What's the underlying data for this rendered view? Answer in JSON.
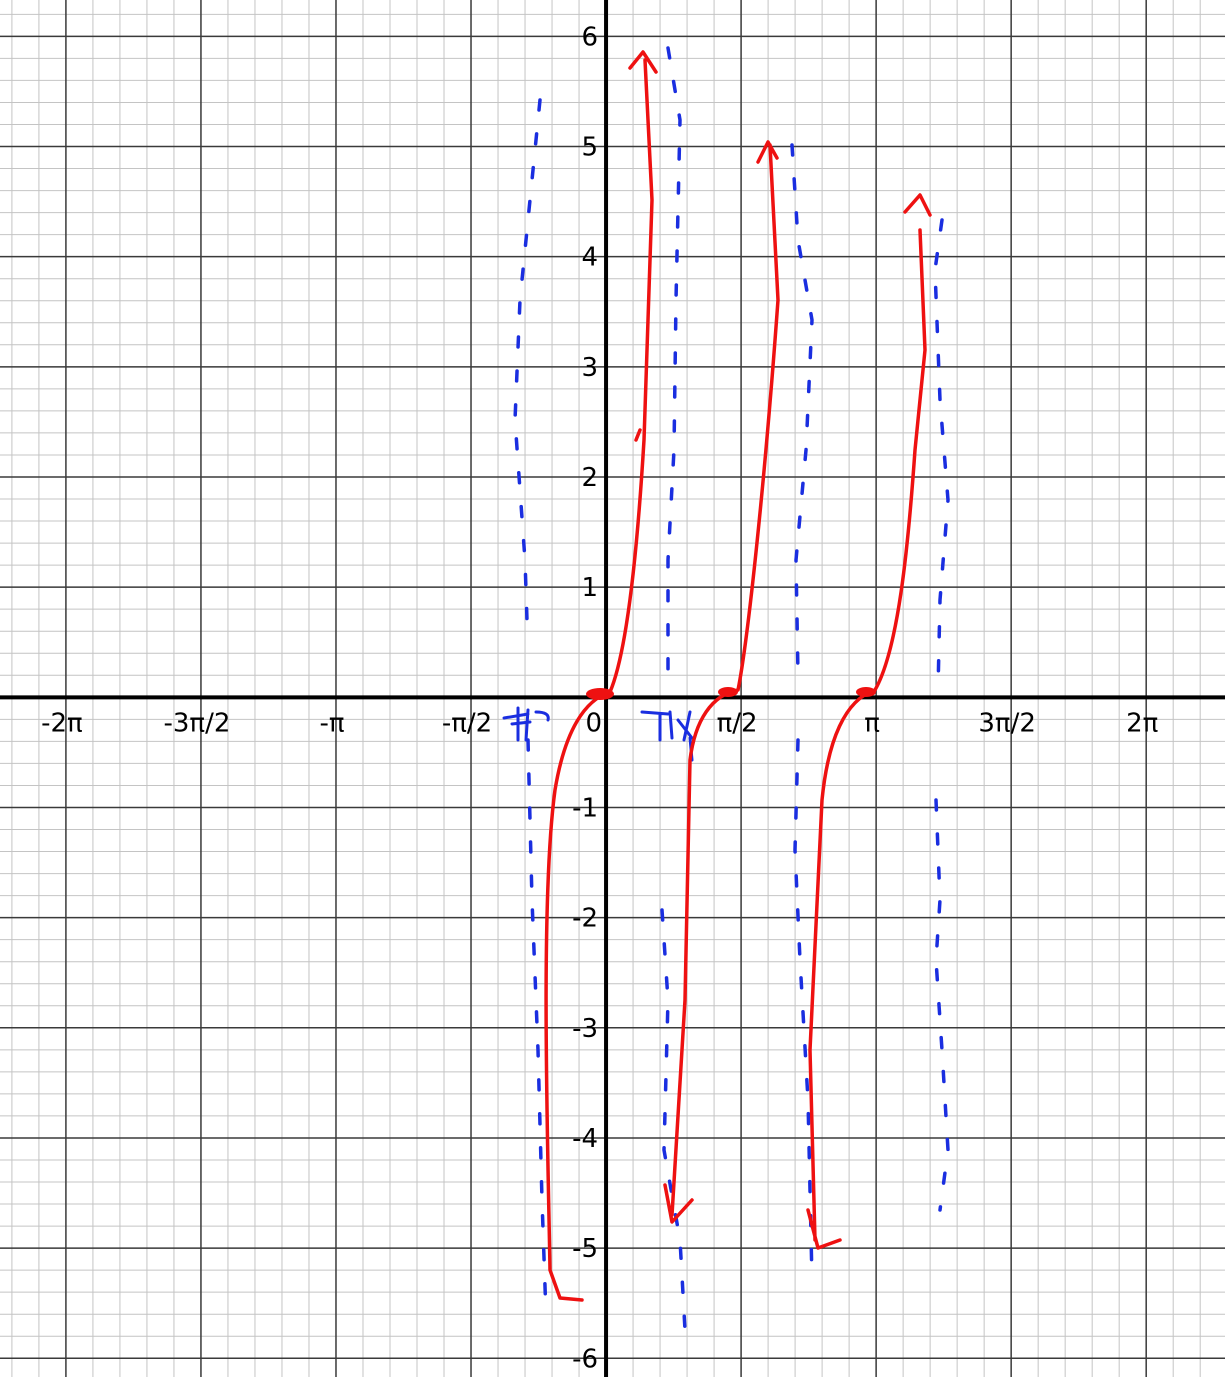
{
  "chart_data": {
    "type": "line",
    "xlim": [
      -7.05,
      7.2
    ],
    "ylim": [
      -6.17,
      6.33
    ],
    "xticks": [
      {
        "value": -6.2832,
        "label": "-2π"
      },
      {
        "value": -4.7124,
        "label": "-3π/2"
      },
      {
        "value": -3.1416,
        "label": "-π"
      },
      {
        "value": -1.5708,
        "label": "-π/2"
      },
      0,
      {
        "value": 1.5708,
        "label": "π/2"
      },
      {
        "value": 3.1416,
        "label": "π"
      },
      {
        "value": 4.7124,
        "label": "3π/2"
      },
      {
        "value": 6.2832,
        "label": "2π"
      }
    ],
    "yticks": [
      -6,
      -5,
      -4,
      -3,
      -2,
      -1,
      1,
      2,
      3,
      4,
      5,
      6
    ],
    "grid": true
  }
}
